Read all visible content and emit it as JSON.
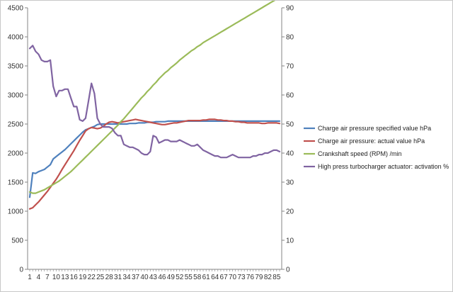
{
  "chart_data": {
    "type": "line",
    "title": "",
    "xlabel": "",
    "ylabel": "",
    "y2label": "",
    "x": [
      1,
      2,
      3,
      4,
      5,
      6,
      7,
      8,
      9,
      10,
      11,
      12,
      13,
      14,
      15,
      16,
      17,
      18,
      19,
      20,
      21,
      22,
      23,
      24,
      25,
      26,
      27,
      28,
      29,
      30,
      31,
      32,
      33,
      34,
      35,
      36,
      37,
      38,
      39,
      40,
      41,
      42,
      43,
      44,
      45,
      46,
      47,
      48,
      49,
      50,
      51,
      52,
      53,
      54,
      55,
      56,
      57,
      58,
      59,
      60,
      61,
      62,
      63,
      64,
      65,
      66,
      67,
      68,
      69,
      70,
      71,
      72,
      73,
      74,
      75,
      76,
      77,
      78,
      79,
      80,
      81,
      82,
      83,
      84,
      85,
      86
    ],
    "x_tick_labels": [
      "1",
      "4",
      "7",
      "10",
      "13",
      "16",
      "19",
      "22",
      "25",
      "28",
      "31",
      "34",
      "37",
      "40",
      "43",
      "46",
      "49",
      "52",
      "55",
      "58",
      "61",
      "64",
      "67",
      "70",
      "73",
      "76",
      "79",
      "82",
      "85"
    ],
    "x_tick_values": [
      1,
      4,
      7,
      10,
      13,
      16,
      19,
      22,
      25,
      28,
      31,
      34,
      37,
      40,
      43,
      46,
      49,
      52,
      55,
      58,
      61,
      64,
      67,
      70,
      73,
      76,
      79,
      82,
      85
    ],
    "ylim": [
      0,
      4500
    ],
    "y_ticks": [
      0,
      500,
      1000,
      1500,
      2000,
      2500,
      3000,
      3500,
      4000,
      4500
    ],
    "y2lim": [
      0,
      90
    ],
    "y2_ticks": [
      0,
      10,
      20,
      30,
      40,
      50,
      60,
      70,
      80,
      90
    ],
    "grid": false,
    "legend_position": "right",
    "series": [
      {
        "name": "Charge air pressure specified value  hPa",
        "axis": "left",
        "color": "#4f81bd",
        "values": [
          1240,
          1660,
          1650,
          1680,
          1700,
          1720,
          1760,
          1800,
          1900,
          1940,
          1980,
          2020,
          2060,
          2110,
          2160,
          2210,
          2260,
          2310,
          2360,
          2400,
          2420,
          2440,
          2460,
          2490,
          2500,
          2500,
          2500,
          2500,
          2500,
          2500,
          2500,
          2500,
          2500,
          2500,
          2510,
          2510,
          2510,
          2520,
          2520,
          2520,
          2530,
          2530,
          2530,
          2540,
          2540,
          2540,
          2540,
          2550,
          2550,
          2550,
          2550,
          2550,
          2550,
          2550,
          2550,
          2550,
          2550,
          2550,
          2550,
          2550,
          2550,
          2550,
          2550,
          2550,
          2550,
          2550,
          2550,
          2550,
          2550,
          2550,
          2550,
          2550,
          2550,
          2550,
          2550,
          2550,
          2550,
          2550,
          2550,
          2550,
          2550,
          2550,
          2550,
          2550,
          2550,
          2550
        ]
      },
      {
        "name": "Charge air pressure: actual value  hPa",
        "axis": "left",
        "color": "#c0504d",
        "values": [
          1040,
          1060,
          1110,
          1160,
          1220,
          1280,
          1340,
          1410,
          1480,
          1550,
          1630,
          1720,
          1800,
          1880,
          1960,
          2040,
          2130,
          2220,
          2300,
          2380,
          2420,
          2440,
          2430,
          2420,
          2430,
          2460,
          2500,
          2530,
          2540,
          2530,
          2520,
          2530,
          2540,
          2550,
          2560,
          2570,
          2580,
          2570,
          2560,
          2550,
          2540,
          2530,
          2520,
          2510,
          2500,
          2490,
          2490,
          2500,
          2510,
          2520,
          2520,
          2530,
          2540,
          2550,
          2560,
          2560,
          2560,
          2560,
          2560,
          2570,
          2570,
          2580,
          2580,
          2580,
          2570,
          2570,
          2560,
          2560,
          2550,
          2550,
          2540,
          2540,
          2530,
          2530,
          2520,
          2520,
          2520,
          2520,
          2520,
          2510,
          2510,
          2520,
          2520,
          2520,
          2520,
          2510
        ]
      },
      {
        "name": "Crankshaft speed (RPM)  /min",
        "axis": "left",
        "color": "#9bbb59",
        "values": [
          1330,
          1310,
          1310,
          1330,
          1350,
          1370,
          1400,
          1430,
          1460,
          1490,
          1520,
          1560,
          1600,
          1640,
          1680,
          1730,
          1780,
          1830,
          1880,
          1930,
          1980,
          2030,
          2080,
          2130,
          2180,
          2230,
          2280,
          2330,
          2380,
          2430,
          2480,
          2540,
          2590,
          2650,
          2710,
          2770,
          2830,
          2890,
          2950,
          3000,
          3060,
          3110,
          3170,
          3220,
          3280,
          3330,
          3380,
          3420,
          3470,
          3510,
          3550,
          3600,
          3640,
          3680,
          3720,
          3760,
          3790,
          3830,
          3860,
          3900,
          3930,
          3960,
          3990,
          4020,
          4050,
          4080,
          4110,
          4140,
          4170,
          4200,
          4230,
          4260,
          4290,
          4320,
          4350,
          4380,
          4410,
          4440,
          4470,
          4500,
          4530,
          4560,
          4590,
          4620,
          4650,
          4680
        ]
      },
      {
        "name": "High press turbocharger actuator: activation  %",
        "axis": "right",
        "color": "#8064a2",
        "values": [
          76,
          77,
          75,
          74,
          72,
          71.5,
          71.5,
          72,
          63,
          59.5,
          61.5,
          61.5,
          62,
          62,
          59,
          56,
          56,
          51.5,
          51,
          52,
          58,
          64,
          60.5,
          52,
          50,
          49,
          49,
          49,
          48.5,
          47,
          46,
          46,
          43,
          42.5,
          42,
          42,
          41.5,
          41,
          40,
          39.5,
          39.5,
          40.5,
          46,
          45.5,
          43.5,
          44,
          44.5,
          44.5,
          44,
          44,
          44,
          44.5,
          44,
          43.5,
          43,
          42.5,
          42.5,
          43,
          42,
          41,
          40.5,
          40,
          39.5,
          39,
          39,
          38.5,
          38.5,
          38.5,
          39,
          39.5,
          39,
          38.5,
          38.5,
          38.5,
          38.5,
          38.5,
          39,
          39,
          39.5,
          39.5,
          40,
          40,
          40.5,
          41,
          41,
          40.5
        ]
      }
    ]
  }
}
